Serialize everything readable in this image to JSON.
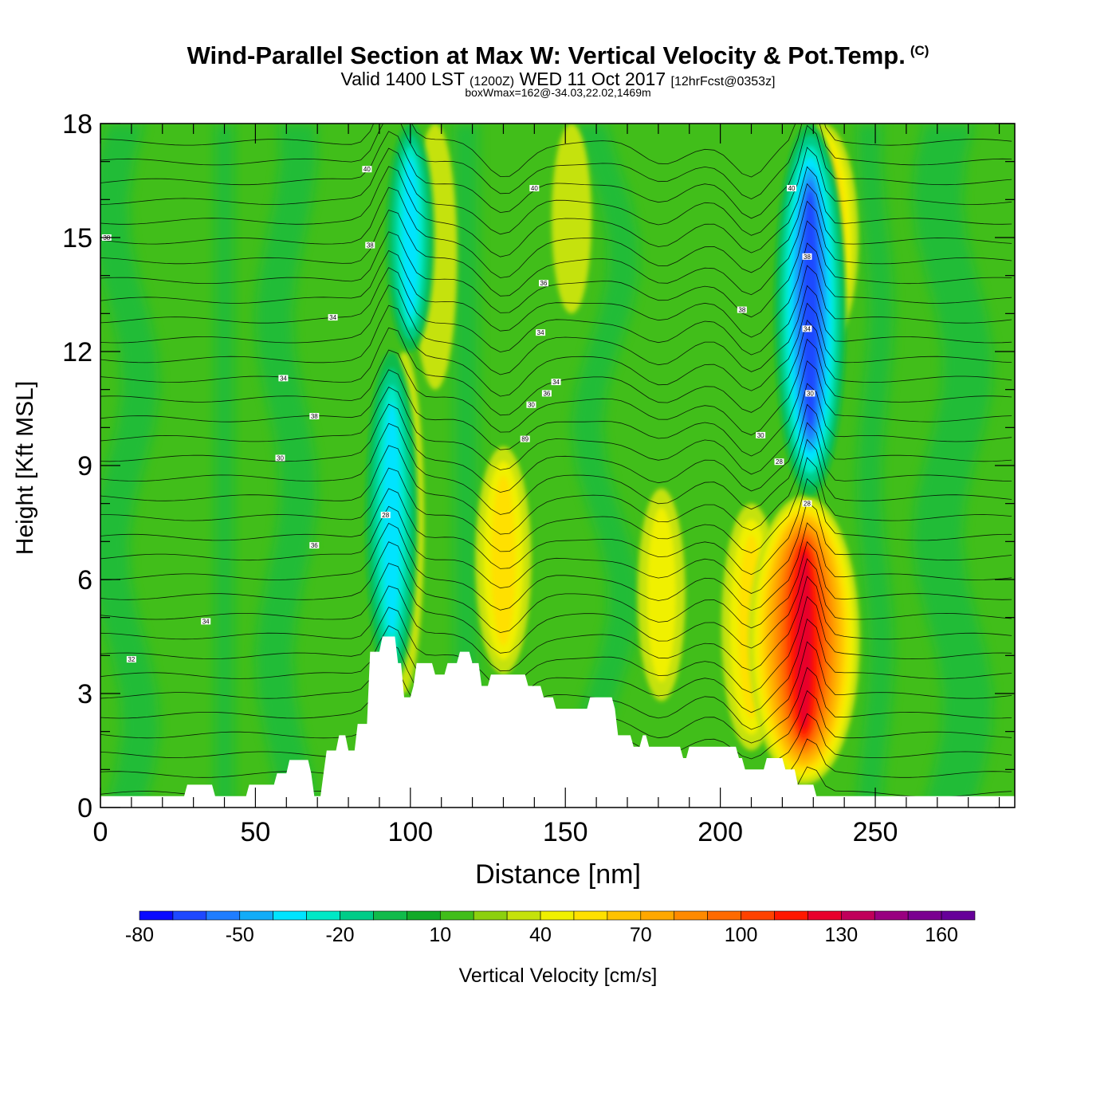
{
  "chart_data": {
    "type": "heatmap",
    "title": "Wind-Parallel Section at Max W: Vertical Velocity & Pot.Temp.",
    "copyright": "(C)",
    "subtitle": {
      "main_a": "Valid 1400 LST",
      "utc": "(1200Z)",
      "main_b": "WED 11 Oct 2017",
      "forecast": "[12hrFcst@0353z]"
    },
    "box_info": "boxWmax=162@-34.03,22.02,1469m",
    "xlabel": "Distance [nm]",
    "ylabel": "Height [Kft MSL]",
    "xlim": [
      0,
      295
    ],
    "ylim": [
      0,
      18
    ],
    "x_ticks": [
      "0",
      "50",
      "100",
      "150",
      "200",
      "250"
    ],
    "y_ticks": [
      "0",
      "3",
      "6",
      "9",
      "12",
      "15",
      "18"
    ],
    "colorbar": {
      "title": "Vertical Velocity [cm/s]",
      "range": [
        -80,
        170
      ],
      "step": 10,
      "labels": [
        "-80",
        "-50",
        "-20",
        "10",
        "40",
        "70",
        "100",
        "130",
        "160"
      ],
      "colors": [
        "#0a0aff",
        "#1e48ff",
        "#1f7dff",
        "#12acf8",
        "#00e4ff",
        "#00e8c6",
        "#00cc88",
        "#11bb4b",
        "#12aa28",
        "#41be1a",
        "#8cd00e",
        "#c5e20b",
        "#f0f000",
        "#ffe000",
        "#ffc200",
        "#ffa800",
        "#ff8a00",
        "#ff6a00",
        "#ff4200",
        "#ff1800",
        "#e8002c",
        "#c0005a",
        "#990080",
        "#7a0090",
        "#660099"
      ]
    },
    "updrafts": [
      {
        "x": 130,
        "bottom": 3.5,
        "top": 9.5,
        "peak": 50
      },
      {
        "x": 181,
        "bottom": 2.8,
        "top": 8.4,
        "peak": 40
      },
      {
        "x": 210,
        "bottom": 1.5,
        "top": 8.0,
        "peak": 55
      },
      {
        "x": 227,
        "bottom": 0.6,
        "top": 8.2,
        "peak": 120
      },
      {
        "x": 233,
        "bottom": 12.0,
        "top": 18.0,
        "peak": 70
      },
      {
        "x": 98,
        "bottom": 3.0,
        "top": 12.0,
        "peak": 30
      },
      {
        "x": 108,
        "bottom": 11.0,
        "top": 18.0,
        "peak": 35
      },
      {
        "x": 152,
        "bottom": 13.0,
        "top": 18.0,
        "peak": 30
      }
    ],
    "downdrafts": [
      {
        "x": 94,
        "bottom": 3.2,
        "top": 12.0,
        "peak": -45
      },
      {
        "x": 100,
        "bottom": 12.0,
        "top": 18.0,
        "peak": -40
      },
      {
        "x": 229,
        "bottom": 8.2,
        "top": 18.0,
        "peak": -70
      }
    ],
    "terrain": [
      [
        0,
        0.3
      ],
      [
        27,
        0.3
      ],
      [
        28,
        0.6
      ],
      [
        36,
        0.6
      ],
      [
        37,
        0.3
      ],
      [
        47,
        0.3
      ],
      [
        48,
        0.6
      ],
      [
        56,
        0.6
      ],
      [
        57,
        0.9
      ],
      [
        60,
        0.9
      ],
      [
        61,
        1.25
      ],
      [
        67,
        1.25
      ],
      [
        68,
        0.9
      ],
      [
        69,
        0.3
      ],
      [
        71,
        0.3
      ],
      [
        72,
        0.9
      ],
      [
        73,
        1.5
      ],
      [
        76,
        1.5
      ],
      [
        77,
        1.9
      ],
      [
        79,
        1.9
      ],
      [
        80,
        1.5
      ],
      [
        82,
        1.5
      ],
      [
        83,
        2.2
      ],
      [
        86,
        2.2
      ],
      [
        87,
        4.1
      ],
      [
        90,
        4.1
      ],
      [
        91,
        4.5
      ],
      [
        95,
        4.5
      ],
      [
        96,
        3.8
      ],
      [
        97,
        3.8
      ],
      [
        98,
        2.9
      ],
      [
        100,
        2.9
      ],
      [
        101,
        3.2
      ],
      [
        102,
        3.8
      ],
      [
        107,
        3.8
      ],
      [
        108,
        3.5
      ],
      [
        111,
        3.5
      ],
      [
        112,
        3.8
      ],
      [
        115,
        3.8
      ],
      [
        116,
        4.1
      ],
      [
        119,
        4.1
      ],
      [
        120,
        3.8
      ],
      [
        122,
        3.8
      ],
      [
        123,
        3.2
      ],
      [
        125,
        3.2
      ],
      [
        126,
        3.5
      ],
      [
        137,
        3.5
      ],
      [
        138,
        3.2
      ],
      [
        142,
        3.2
      ],
      [
        143,
        2.9
      ],
      [
        146,
        2.9
      ],
      [
        147,
        2.6
      ],
      [
        157,
        2.6
      ],
      [
        158,
        2.9
      ],
      [
        165,
        2.9
      ],
      [
        166,
        2.6
      ],
      [
        167,
        1.9
      ],
      [
        171,
        1.9
      ],
      [
        172,
        1.6
      ],
      [
        174,
        1.6
      ],
      [
        175,
        1.9
      ],
      [
        176,
        1.9
      ],
      [
        177,
        1.6
      ],
      [
        187,
        1.6
      ],
      [
        188,
        1.3
      ],
      [
        189,
        1.3
      ],
      [
        190,
        1.6
      ],
      [
        205,
        1.6
      ],
      [
        206,
        1.3
      ],
      [
        207,
        1.3
      ],
      [
        208,
        1.0
      ],
      [
        214,
        1.0
      ],
      [
        215,
        1.3
      ],
      [
        220,
        1.3
      ],
      [
        221,
        1.0
      ],
      [
        224,
        1.0
      ],
      [
        225,
        0.6
      ],
      [
        230,
        0.6
      ],
      [
        231,
        0.3
      ],
      [
        295,
        0.3
      ]
    ],
    "theta_labels": [
      {
        "x": 2,
        "z": 15.0,
        "text": "38"
      },
      {
        "x": 10,
        "z": 3.9,
        "text": "32"
      },
      {
        "x": 34,
        "z": 4.9,
        "text": "34"
      },
      {
        "x": 59,
        "z": 11.3,
        "text": "34"
      },
      {
        "x": 58,
        "z": 9.2,
        "text": "30"
      },
      {
        "x": 69,
        "z": 10.3,
        "text": "38"
      },
      {
        "x": 69,
        "z": 6.9,
        "text": "36"
      },
      {
        "x": 75,
        "z": 12.9,
        "text": "34"
      },
      {
        "x": 86,
        "z": 16.8,
        "text": "40"
      },
      {
        "x": 87,
        "z": 14.8,
        "text": "38"
      },
      {
        "x": 92,
        "z": 7.7,
        "text": "28"
      },
      {
        "x": 137,
        "z": 9.7,
        "text": "89"
      },
      {
        "x": 139,
        "z": 10.6,
        "text": "30"
      },
      {
        "x": 142,
        "z": 12.5,
        "text": "34"
      },
      {
        "x": 143,
        "z": 13.8,
        "text": "36"
      },
      {
        "x": 140,
        "z": 16.3,
        "text": "40"
      },
      {
        "x": 144,
        "z": 10.9,
        "text": "36"
      },
      {
        "x": 147,
        "z": 11.2,
        "text": "34"
      },
      {
        "x": 207,
        "z": 13.1,
        "text": "38"
      },
      {
        "x": 213,
        "z": 9.8,
        "text": "30"
      },
      {
        "x": 219,
        "z": 9.1,
        "text": "28"
      },
      {
        "x": 223,
        "z": 16.3,
        "text": "40"
      },
      {
        "x": 228,
        "z": 14.5,
        "text": "38"
      },
      {
        "x": 228,
        "z": 12.6,
        "text": "34"
      },
      {
        "x": 229,
        "z": 10.9,
        "text": "30"
      },
      {
        "x": 228,
        "z": 8.0,
        "text": "28"
      }
    ]
  }
}
